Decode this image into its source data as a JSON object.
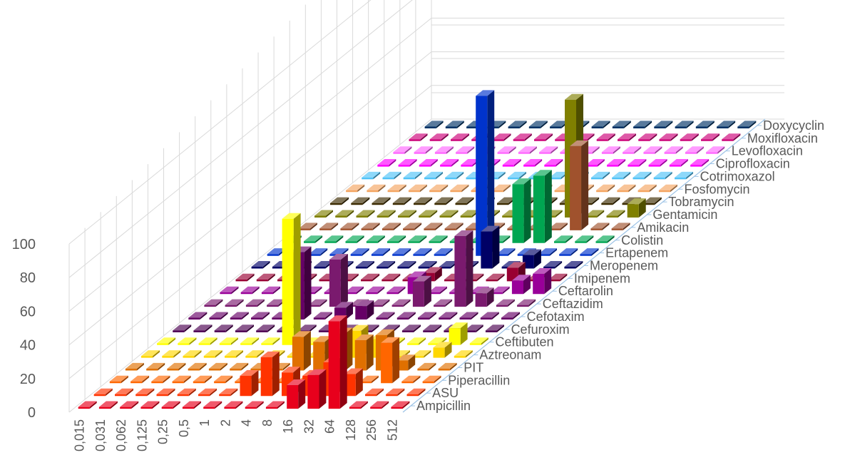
{
  "chart_data": {
    "type": "bar",
    "subtype": "3d-column",
    "title": "",
    "xlabel": "",
    "ylabel": "",
    "ylim": [
      0,
      100
    ],
    "y_ticks": [
      "0",
      "20",
      "40",
      "60",
      "80",
      "100"
    ],
    "categories": [
      "0,015",
      "0,031",
      "0,062",
      "0,125",
      "0,25",
      "0,5",
      "1",
      "2",
      "4",
      "8",
      "16",
      "32",
      "64",
      "128",
      "256",
      "512"
    ],
    "grid": true,
    "legend": "none; series names shown along the depth axis",
    "series": [
      {
        "name": "Ampicillin",
        "color": "#E8001C",
        "values": [
          0,
          0,
          0,
          0,
          0,
          0,
          0,
          0,
          0,
          0,
          14,
          20,
          52,
          0,
          0,
          0
        ]
      },
      {
        "name": "ASU",
        "color": "#FF3300",
        "values": [
          0,
          0,
          0,
          0,
          0,
          0,
          0,
          12,
          23,
          14,
          12,
          20,
          13,
          0,
          0,
          0
        ]
      },
      {
        "name": "Piperacillin",
        "color": "#FF6600",
        "values": [
          0,
          0,
          0,
          0,
          0,
          0,
          0,
          0,
          0,
          0,
          0,
          0,
          0,
          24,
          0,
          0
        ]
      },
      {
        "name": "PIT",
        "color": "#E07000",
        "values": [
          0,
          0,
          0,
          0,
          0,
          0,
          0,
          0,
          20,
          17,
          22,
          18,
          21,
          6,
          0,
          0
        ]
      },
      {
        "name": "Aztreonam",
        "color": "#FFD700",
        "values": [
          0,
          0,
          0,
          0,
          0,
          0,
          0,
          0,
          0,
          5,
          16,
          11,
          0,
          0,
          6,
          0
        ]
      },
      {
        "name": "Ceftibuten",
        "color": "#FFFF00",
        "values": [
          0,
          0,
          0,
          0,
          0,
          0,
          75,
          0,
          0,
          0,
          0,
          0,
          0,
          0,
          10,
          0
        ]
      },
      {
        "name": "Cefuroxim",
        "color": "#4B0050",
        "values": [
          0,
          0,
          0,
          0,
          0,
          0,
          0,
          0,
          0,
          0,
          0,
          0,
          0,
          0,
          0,
          0
        ]
      },
      {
        "name": "Cefotaxim",
        "color": "#660066",
        "values": [
          0,
          0,
          0,
          0,
          0,
          40,
          0,
          7,
          8,
          0,
          0,
          0,
          0,
          0,
          0,
          0
        ]
      },
      {
        "name": "Ceftazidim",
        "color": "#7A1A6E",
        "values": [
          0,
          0,
          0,
          0,
          0,
          0,
          28,
          0,
          0,
          0,
          15,
          0,
          42,
          8,
          0,
          0
        ]
      },
      {
        "name": "Ceftarolin",
        "color": "#990099",
        "values": [
          0,
          0,
          0,
          0,
          0,
          0,
          0,
          0,
          0,
          10,
          0,
          0,
          0,
          0,
          8,
          12
        ]
      },
      {
        "name": "Imipenem",
        "color": "#990033",
        "values": [
          0,
          0,
          0,
          0,
          0,
          0,
          0,
          0,
          0,
          5,
          0,
          0,
          0,
          8,
          0,
          0
        ]
      },
      {
        "name": "Meropenem",
        "color": "#000066",
        "values": [
          0,
          0,
          0,
          0,
          0,
          0,
          0,
          0,
          0,
          0,
          0,
          22,
          0,
          8,
          0,
          0
        ]
      },
      {
        "name": "Ertapenem",
        "color": "#0033CC",
        "values": [
          0,
          0,
          0,
          0,
          0,
          0,
          0,
          0,
          0,
          0,
          95,
          0,
          0,
          0,
          0,
          0
        ]
      },
      {
        "name": "Colistin",
        "color": "#00A651",
        "values": [
          0,
          0,
          0,
          0,
          0,
          0,
          0,
          0,
          0,
          0,
          0,
          35,
          40,
          0,
          0,
          0
        ]
      },
      {
        "name": "Amikacin",
        "color": "#A0522D",
        "values": [
          0,
          0,
          0,
          0,
          0,
          0,
          0,
          0,
          0,
          0,
          0,
          0,
          0,
          50,
          0,
          0
        ]
      },
      {
        "name": "Gentamicin",
        "color": "#808000",
        "values": [
          0,
          0,
          0,
          0,
          0,
          0,
          0,
          0,
          0,
          0,
          0,
          0,
          70,
          0,
          0,
          8
        ]
      },
      {
        "name": "Tobramycin",
        "color": "#3B2A00",
        "values": [
          0,
          0,
          0,
          0,
          0,
          0,
          0,
          0,
          0,
          0,
          0,
          0,
          0,
          0,
          0,
          0
        ]
      },
      {
        "name": "Fosfomycin",
        "color": "#F4A460",
        "values": [
          0,
          0,
          0,
          0,
          0,
          0,
          0,
          0,
          0,
          0,
          0,
          0,
          0,
          0,
          0,
          0
        ]
      },
      {
        "name": "Cotrimoxazol",
        "color": "#4FC3F7",
        "values": [
          0,
          0,
          0,
          0,
          0,
          0,
          0,
          0,
          0,
          0,
          0,
          0,
          0,
          0,
          0,
          0
        ]
      },
      {
        "name": "Ciprofloxacin",
        "color": "#FF00FF",
        "values": [
          0,
          0,
          0,
          0,
          0,
          0,
          0,
          0,
          0,
          0,
          0,
          0,
          0,
          0,
          0,
          0
        ]
      },
      {
        "name": "Levofloxacin",
        "color": "#FF66FF",
        "values": [
          0,
          0,
          0,
          0,
          0,
          0,
          0,
          0,
          0,
          0,
          0,
          0,
          0,
          0,
          0,
          0
        ]
      },
      {
        "name": "Moxifloxacin",
        "color": "#CC0077",
        "values": [
          0,
          0,
          0,
          0,
          0,
          0,
          0,
          0,
          0,
          0,
          0,
          0,
          0,
          0,
          0,
          0
        ]
      },
      {
        "name": "Doxycyclin",
        "color": "#003366",
        "values": [
          0,
          0,
          0,
          0,
          0,
          0,
          0,
          0,
          0,
          0,
          0,
          0,
          0,
          0,
          0,
          0
        ]
      }
    ]
  }
}
